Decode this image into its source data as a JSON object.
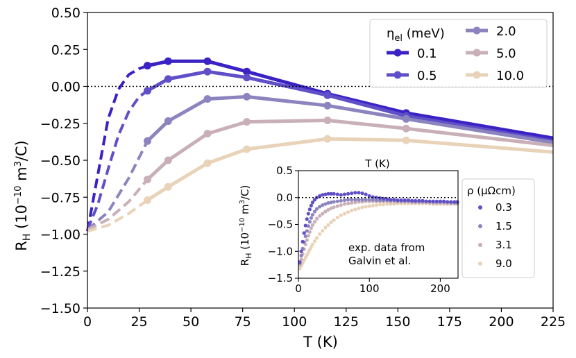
{
  "chart_data": [
    {
      "type": "line",
      "xlabel": "T  (K)",
      "ylabel": "R_H  (10^-10 m^3/C)",
      "xlim": [
        0,
        225
      ],
      "ylim": [
        -1.5,
        0.5
      ],
      "xticks": [
        0,
        25,
        50,
        75,
        100,
        125,
        150,
        175,
        200,
        225
      ],
      "yticks": [
        -1.5,
        -1.25,
        -1.0,
        -0.75,
        -0.5,
        -0.25,
        0.0,
        0.25,
        0.5
      ],
      "xtick_labels": [
        "0",
        "25",
        "50",
        "75",
        "100",
        "125",
        "150",
        "175",
        "200",
        "225"
      ],
      "ytick_labels": [
        "−1.50",
        "−1.25",
        "−1.00",
        "−0.75",
        "−0.50",
        "−0.25",
        "0.00",
        "0.25",
        "0.50"
      ],
      "reference_line": {
        "y": 0,
        "style": "dotted"
      },
      "legend": {
        "title": "η_el (meV)",
        "location": "upper right",
        "columns": 2
      },
      "series": [
        {
          "name": "0.1",
          "color": "#3a22c4",
          "dashed_x": [
            0,
            5,
            10,
            15,
            20,
            25,
            29
          ],
          "dashed_y": [
            -0.98,
            -0.6,
            -0.22,
            -0.02,
            0.08,
            0.12,
            0.14
          ],
          "x": [
            29,
            39,
            58,
            77,
            116,
            154,
            225
          ],
          "y": [
            0.14,
            0.17,
            0.17,
            0.1,
            -0.05,
            -0.18,
            -0.35
          ]
        },
        {
          "name": "0.5",
          "color": "#5f4fc8",
          "dashed_x": [
            0,
            5,
            10,
            15,
            20,
            25,
            29
          ],
          "dashed_y": [
            -0.97,
            -0.8,
            -0.56,
            -0.33,
            -0.17,
            -0.07,
            -0.03
          ],
          "x": [
            29,
            39,
            58,
            77,
            116,
            154,
            225
          ],
          "y": [
            -0.03,
            0.05,
            0.1,
            0.06,
            -0.06,
            -0.2,
            -0.37
          ]
        },
        {
          "name": "2.0",
          "color": "#8c84bf",
          "dashed_x": [
            0,
            10,
            20,
            29
          ],
          "dashed_y": [
            -0.97,
            -0.85,
            -0.62,
            -0.37
          ],
          "x": [
            29,
            39,
            58,
            77,
            116,
            154,
            225
          ],
          "y": [
            -0.37,
            -0.235,
            -0.085,
            -0.07,
            -0.13,
            -0.22,
            -0.38
          ]
        },
        {
          "name": "5.0",
          "color": "#c9afb7",
          "dashed_x": [
            0,
            10,
            20,
            29
          ],
          "dashed_y": [
            -0.97,
            -0.9,
            -0.78,
            -0.63
          ],
          "x": [
            29,
            39,
            58,
            77,
            116,
            154,
            225
          ],
          "y": [
            -0.63,
            -0.5,
            -0.32,
            -0.24,
            -0.23,
            -0.285,
            -0.4
          ]
        },
        {
          "name": "10.0",
          "color": "#e8d2b8",
          "dashed_x": [
            0,
            10,
            20,
            29
          ],
          "dashed_y": [
            -0.98,
            -0.94,
            -0.86,
            -0.77
          ],
          "x": [
            29,
            39,
            58,
            77,
            116,
            154,
            225
          ],
          "y": [
            -0.77,
            -0.68,
            -0.52,
            -0.425,
            -0.355,
            -0.365,
            -0.445
          ]
        }
      ]
    },
    {
      "type": "scatter",
      "title": "T  (K)",
      "ylabel": "R_H  (10^-10 m^3/C)",
      "xlim": [
        0,
        225
      ],
      "ylim": [
        -1.5,
        0.5
      ],
      "xticks": [
        0,
        100,
        200
      ],
      "yticks": [
        -1.5,
        -1.0,
        -0.5,
        0.0,
        0.5
      ],
      "xtick_labels": [
        "0",
        "100",
        "200"
      ],
      "ytick_labels": [
        "−1.5",
        "−1.0",
        "−0.5",
        "0.0",
        "0.5"
      ],
      "reference_line": {
        "y": 0,
        "style": "dotted"
      },
      "annotation": "exp. data from\nGalvin et al.",
      "legend": {
        "title": "ρ (μΩcm)",
        "location": "outside right"
      },
      "series": [
        {
          "name": "0.3",
          "color": "#5f4fc8",
          "x": [
            2,
            4,
            6,
            8,
            10,
            12,
            14,
            16,
            18,
            20,
            23,
            26,
            30,
            34,
            38,
            42,
            46,
            50,
            55,
            60,
            65,
            70,
            75,
            80,
            85,
            90,
            95,
            100,
            105,
            110,
            115,
            120,
            125,
            130,
            135,
            140,
            145,
            150,
            155,
            160,
            165,
            170,
            175,
            180,
            185,
            190,
            195,
            200,
            205,
            210,
            215,
            220,
            224
          ],
          "y": [
            -1.2,
            -1.0,
            -0.82,
            -0.66,
            -0.52,
            -0.4,
            -0.3,
            -0.22,
            -0.15,
            -0.09,
            -0.04,
            0.0,
            0.03,
            0.05,
            0.06,
            0.07,
            0.07,
            0.07,
            0.06,
            0.05,
            0.06,
            0.07,
            0.08,
            0.09,
            0.09,
            0.08,
            0.06,
            0.03,
            0.01,
            0.0,
            -0.01,
            -0.02,
            -0.03,
            -0.04,
            -0.04,
            -0.05,
            -0.05,
            -0.05,
            -0.05,
            -0.06,
            -0.06,
            -0.06,
            -0.06,
            -0.07,
            -0.07,
            -0.07,
            -0.07,
            -0.07,
            -0.07,
            -0.08,
            -0.08,
            -0.08,
            -0.08
          ]
        },
        {
          "name": "1.5",
          "color": "#8c84bf",
          "x": [
            2,
            4,
            6,
            8,
            10,
            12,
            14,
            16,
            18,
            20,
            23,
            26,
            30,
            34,
            38,
            42,
            46,
            50,
            55,
            60,
            65,
            70,
            75,
            80,
            85,
            90,
            95,
            100,
            105,
            110,
            115,
            120,
            125,
            130,
            135,
            140,
            145,
            150,
            155,
            160,
            165,
            170,
            175,
            180,
            185,
            190,
            195,
            200,
            205,
            210,
            215,
            220,
            224
          ],
          "y": [
            -1.22,
            -1.08,
            -0.95,
            -0.83,
            -0.72,
            -0.62,
            -0.53,
            -0.45,
            -0.38,
            -0.32,
            -0.26,
            -0.21,
            -0.17,
            -0.14,
            -0.12,
            -0.1,
            -0.09,
            -0.08,
            -0.07,
            -0.06,
            -0.05,
            -0.04,
            -0.04,
            -0.04,
            -0.04,
            -0.04,
            -0.04,
            -0.04,
            -0.04,
            -0.05,
            -0.05,
            -0.05,
            -0.05,
            -0.05,
            -0.05,
            -0.06,
            -0.06,
            -0.06,
            -0.06,
            -0.06,
            -0.07,
            -0.07,
            -0.07,
            -0.07,
            -0.07,
            -0.08,
            -0.08,
            -0.08,
            -0.08,
            -0.08,
            -0.09,
            -0.09,
            -0.09
          ]
        },
        {
          "name": "3.1",
          "color": "#c9afb7",
          "x": [
            2,
            4,
            6,
            8,
            10,
            12,
            14,
            16,
            18,
            20,
            23,
            26,
            30,
            34,
            38,
            42,
            46,
            50,
            55,
            60,
            65,
            70,
            75,
            80,
            85,
            90,
            95,
            100,
            105,
            110,
            115,
            120,
            125,
            130,
            135,
            140,
            145,
            150,
            155,
            160,
            165,
            170,
            175,
            180,
            185,
            190,
            195,
            200,
            205,
            210,
            215,
            220,
            224
          ],
          "y": [
            -1.25,
            -1.15,
            -1.05,
            -0.96,
            -0.87,
            -0.79,
            -0.71,
            -0.64,
            -0.57,
            -0.51,
            -0.45,
            -0.39,
            -0.34,
            -0.3,
            -0.26,
            -0.23,
            -0.2,
            -0.18,
            -0.16,
            -0.14,
            -0.12,
            -0.11,
            -0.1,
            -0.09,
            -0.08,
            -0.08,
            -0.07,
            -0.07,
            -0.07,
            -0.07,
            -0.07,
            -0.07,
            -0.07,
            -0.08,
            -0.08,
            -0.08,
            -0.08,
            -0.08,
            -0.08,
            -0.09,
            -0.09,
            -0.09,
            -0.09,
            -0.09,
            -0.1,
            -0.1,
            -0.1,
            -0.1,
            -0.1,
            -0.11,
            -0.11,
            -0.11,
            -0.11
          ]
        },
        {
          "name": "9.0",
          "color": "#e8d2b8",
          "x": [
            2,
            4,
            6,
            8,
            10,
            12,
            14,
            16,
            18,
            20,
            23,
            26,
            30,
            34,
            38,
            42,
            46,
            50,
            55,
            60,
            65,
            70,
            75,
            80,
            85,
            90,
            95,
            100,
            105,
            110,
            115,
            120,
            125,
            130,
            135,
            140,
            145,
            150,
            155,
            160,
            165,
            170,
            175,
            180,
            185,
            190,
            195,
            200,
            205,
            210,
            215,
            220,
            224
          ],
          "y": [
            -1.32,
            -1.27,
            -1.22,
            -1.17,
            -1.12,
            -1.07,
            -1.02,
            -0.97,
            -0.92,
            -0.87,
            -0.81,
            -0.75,
            -0.68,
            -0.62,
            -0.56,
            -0.51,
            -0.46,
            -0.42,
            -0.37,
            -0.33,
            -0.3,
            -0.27,
            -0.24,
            -0.22,
            -0.2,
            -0.18,
            -0.17,
            -0.16,
            -0.15,
            -0.14,
            -0.13,
            -0.13,
            -0.12,
            -0.12,
            -0.12,
            -0.11,
            -0.11,
            -0.11,
            -0.11,
            -0.11,
            -0.11,
            -0.11,
            -0.11,
            -0.11,
            -0.11,
            -0.12,
            -0.12,
            -0.12,
            -0.12,
            -0.12,
            -0.12,
            -0.12,
            -0.12
          ]
        }
      ]
    }
  ]
}
